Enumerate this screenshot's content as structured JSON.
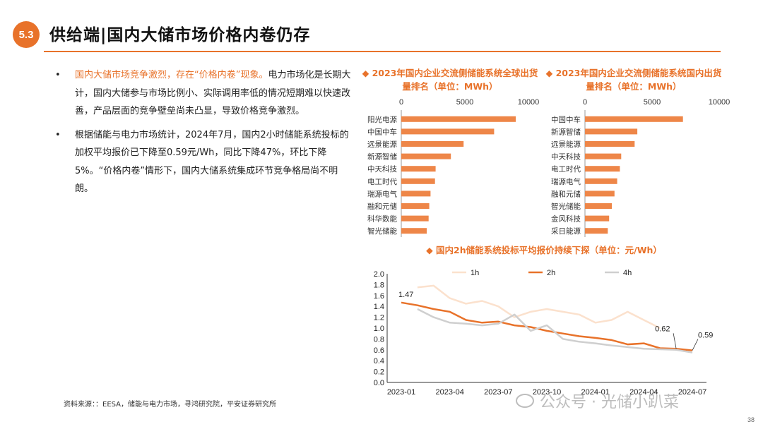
{
  "header": {
    "section_badge": "5.3",
    "title": "供给端|国内大储市场价格内卷仍存"
  },
  "bullets": [
    {
      "dot": "•",
      "highlight": "国内大储市场竞争激烈，存在“价格内卷”现象。",
      "text": "电力市场化是长期大计，国内大储参与市场比例小、实际调用率低的情况短期难以快速改善，产品层面的竞争壁垒尚未凸显，导致价格竞争激烈。"
    },
    {
      "dot": "•",
      "highlight": "",
      "text": "根据储能与电力市场统计，2024年7月，国内2小时储能系统投标的加权平均报价已下降至0.59元/Wh，同比下降47%，环比下降5%。“价格内卷”情形下，国内大储系统集成环节竞争格局尚不明朗。"
    }
  ],
  "chart_global": {
    "title": "◆  2023年国内企业交流侧储能系统全球出货量排名（单位：MWh）"
  },
  "chart_domestic": {
    "title": "◆  2023年国内企业交流侧储能系统国内出货量排名（单位：MWh）"
  },
  "chart_price": {
    "title": "◆  国内2h储能系统投标平均报价持续下探（单位：元/Wh）"
  },
  "source": "资料来源：：EESA，储能与电力市场，寻鸿研究院，平安证券研究所",
  "watermark": "公众号 · 光储小趴菜",
  "page_number": "38",
  "colors": {
    "accent": "#E8722A",
    "bar": "#EE8648",
    "line_1h": "#FBE1CD",
    "line_2h": "#E8722A",
    "line_4h": "#CFCFCF"
  },
  "chart_data": [
    {
      "type": "bar",
      "title": "2023年国内企业交流侧储能系统全球出货量排名（单位：MWh）",
      "orientation": "horizontal",
      "x_ticks": [
        0,
        5000,
        10000
      ],
      "xlim": [
        0,
        10000
      ],
      "categories": [
        "阳光电源",
        "中国中车",
        "远景能源",
        "新源智储",
        "中天科技",
        "电工时代",
        "瑞源电气",
        "融和元储",
        "科华数能",
        "智光储能"
      ],
      "values": [
        9000,
        7300,
        4900,
        3900,
        2700,
        2650,
        2300,
        2200,
        2150,
        2000
      ]
    },
    {
      "type": "bar",
      "title": "2023年国内企业交流侧储能系统国内出货量排名（单位：MWh）",
      "orientation": "horizontal",
      "x_ticks": [
        0,
        5000,
        10000
      ],
      "xlim": [
        0,
        10000
      ],
      "categories": [
        "中国中车",
        "新源智储",
        "远景能源",
        "中天科技",
        "电工时代",
        "瑞源电气",
        "融和元储",
        "智光储能",
        "金风科技",
        "采日能源"
      ],
      "values": [
        7300,
        3900,
        3700,
        2700,
        2600,
        2400,
        2200,
        2000,
        1800,
        1700
      ]
    },
    {
      "type": "line",
      "title": "国内2h储能系统投标平均报价持续下探（单位：元/Wh）",
      "x_ticks": [
        "2023-01",
        "2023-04",
        "2023-07",
        "2023-10",
        "2024-01",
        "2024-04",
        "2024-07"
      ],
      "y_ticks": [
        "0.0",
        "0.2",
        "0.4",
        "0.6",
        "0.8",
        "1.0",
        "1.2",
        "1.4",
        "1.6",
        "1.8",
        "2.0"
      ],
      "ylim": [
        0,
        2.0
      ],
      "legend": "top",
      "annotations": [
        "1.47",
        "0.62",
        "0.59"
      ],
      "series": [
        {
          "name": "1h",
          "x": [
            "2023-02",
            "2023-03",
            "2023-04",
            "2023-05",
            "2023-06",
            "2023-07",
            "2023-08",
            "2023-09",
            "2023-10",
            "2023-11",
            "2023-12",
            "2024-01",
            "2024-02",
            "2024-03",
            "2024-04",
            "2024-05"
          ],
          "values": [
            1.75,
            1.78,
            1.55,
            1.45,
            1.5,
            1.4,
            1.2,
            1.3,
            1.35,
            1.3,
            1.25,
            1.1,
            1.15,
            1.3,
            1.15,
            1.0
          ]
        },
        {
          "name": "2h",
          "x": [
            "2023-01",
            "2023-02",
            "2023-03",
            "2023-04",
            "2023-05",
            "2023-06",
            "2023-07",
            "2023-08",
            "2023-09",
            "2023-10",
            "2023-11",
            "2023-12",
            "2024-01",
            "2024-02",
            "2024-03",
            "2024-04",
            "2024-05",
            "2024-06",
            "2024-07"
          ],
          "values": [
            1.47,
            1.42,
            1.35,
            1.3,
            1.15,
            1.1,
            1.12,
            1.05,
            1.02,
            0.95,
            0.9,
            0.85,
            0.82,
            0.78,
            0.7,
            0.72,
            0.63,
            0.62,
            0.59
          ]
        },
        {
          "name": "4h",
          "x": [
            "2023-02",
            "2023-03",
            "2023-04",
            "2023-05",
            "2023-06",
            "2023-07",
            "2023-08",
            "2023-09",
            "2023-10",
            "2023-11",
            "2023-12",
            "2024-01",
            "2024-02",
            "2024-03",
            "2024-04",
            "2024-05",
            "2024-06",
            "2024-07"
          ],
          "values": [
            1.35,
            1.2,
            1.1,
            1.08,
            1.05,
            1.08,
            1.25,
            0.95,
            1.05,
            0.8,
            0.75,
            0.72,
            0.68,
            0.65,
            0.62,
            0.61,
            0.6,
            0.55
          ]
        }
      ]
    }
  ]
}
